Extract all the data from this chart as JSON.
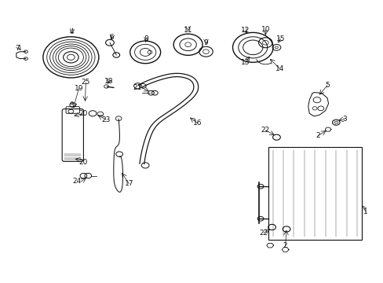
{
  "bg_color": "#ffffff",
  "fig_width": 4.89,
  "fig_height": 3.6,
  "dpi": 100,
  "dark": "#111111",
  "lw": 0.8,
  "fontsize": 6.5
}
